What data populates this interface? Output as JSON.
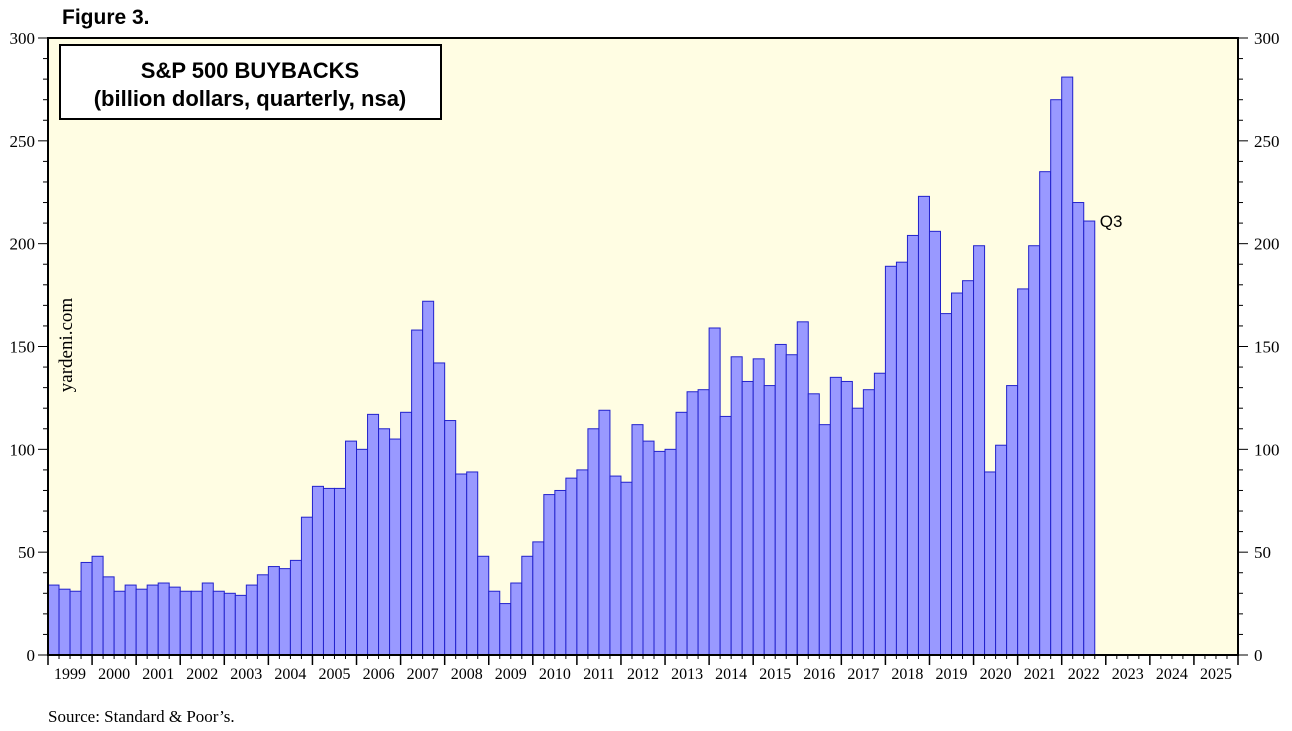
{
  "figure_label": "Figure 3.",
  "source_note": "Source: Standard & Poor’s.",
  "watermark": "yardeni.com",
  "colors": {
    "plot_background": "#fffde3",
    "bar_fill": "#9999ff",
    "bar_stroke": "#2222cc",
    "frame": "#000000"
  },
  "chart_data": {
    "type": "bar",
    "title": "S&P 500 BUYBACKS",
    "subtitle": "(billion dollars, quarterly, nsa)",
    "last_bar_label": "Q3",
    "grid": false,
    "xlim": [
      "1999 Q1",
      "2025 Q4"
    ],
    "ylim": [
      0,
      300
    ],
    "y_ticks": [
      0,
      50,
      100,
      150,
      200,
      250,
      300
    ],
    "x_tick_labels": [
      "1999",
      "2000",
      "2001",
      "2002",
      "2003",
      "2004",
      "2005",
      "2006",
      "2007",
      "2008",
      "2009",
      "2010",
      "2011",
      "2012",
      "2013",
      "2014",
      "2015",
      "2016",
      "2017",
      "2018",
      "2019",
      "2020",
      "2021",
      "2022",
      "2023",
      "2024",
      "2025"
    ],
    "start_year": 1999,
    "series": [
      {
        "values": [
          34,
          32,
          31,
          45,
          48,
          38,
          31,
          34,
          32,
          34,
          35,
          33,
          31,
          31,
          35,
          31,
          30,
          29,
          34,
          39,
          43,
          42,
          46,
          67,
          82,
          81,
          81,
          104,
          100,
          117,
          110,
          105,
          118,
          158,
          172,
          142,
          114,
          88,
          89,
          48,
          31,
          25,
          35,
          48,
          55,
          78,
          80,
          86,
          90,
          110,
          119,
          87,
          84,
          112,
          104,
          99,
          100,
          118,
          128,
          129,
          159,
          116,
          145,
          133,
          144,
          131,
          151,
          146,
          162,
          127,
          112,
          135,
          133,
          120,
          129,
          137,
          189,
          191,
          204,
          223,
          206,
          166,
          176,
          182,
          199,
          89,
          102,
          131,
          178,
          199,
          235,
          270,
          281,
          220,
          211
        ]
      }
    ]
  }
}
